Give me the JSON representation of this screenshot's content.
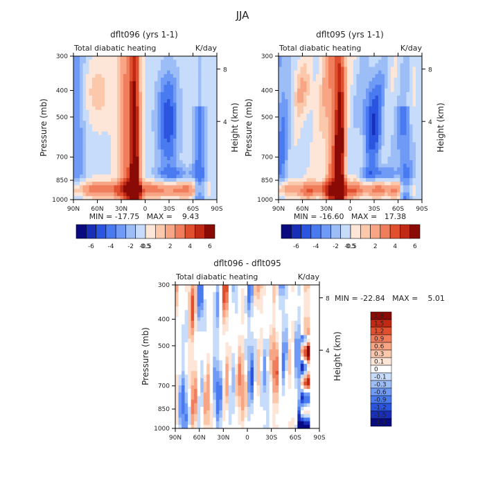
{
  "page_title": "JJA",
  "chart_data": [
    {
      "type": "heatmap",
      "id": "p1",
      "title": "dflt096 (yrs 1-1)",
      "subtitle_left": "Total diabatic heating",
      "subtitle_right": "K/day",
      "ylabel": "Pressure (mb)",
      "y2label": "Height (km)",
      "x_ticks": [
        "90N",
        "60N",
        "30N",
        "0",
        "30S",
        "60S",
        "90S"
      ],
      "y_ticks": [
        "300",
        "400",
        "500",
        "700",
        "850",
        "1000"
      ],
      "y2_ticks": [
        "8",
        "4"
      ],
      "stats": "MIN = -17.75   MAX =    9.43",
      "colorbar_labels": [
        "-6",
        "-4",
        "-2",
        "-0.5",
        "0.5",
        "2",
        "4",
        "6"
      ],
      "colorbar_colors": [
        "#0a0a80",
        "#1a2fb8",
        "#2b55e0",
        "#4a7af0",
        "#6f9af5",
        "#9dbdf7",
        "#c6dcfa",
        "#fde6d8",
        "#fbc8ab",
        "#f7a584",
        "#f07e5c",
        "#e0502f",
        "#c02a14",
        "#8a0a05"
      ]
    },
    {
      "type": "heatmap",
      "id": "p2",
      "title": "dflt095 (yrs 1-1)",
      "subtitle_left": "Total diabatic heating",
      "subtitle_right": "K/day",
      "ylabel": "Pressure (mb)",
      "y2label": "Height (km)",
      "x_ticks": [
        "90N",
        "60N",
        "30N",
        "0",
        "30S",
        "60S",
        "90S"
      ],
      "y_ticks": [
        "300",
        "400",
        "500",
        "700",
        "850",
        "1000"
      ],
      "y2_ticks": [
        "8",
        "4"
      ],
      "stats": "MIN = -16.60   MAX =   17.38",
      "colorbar_labels": [
        "-6",
        "-4",
        "-2",
        "-0.5",
        "0.5",
        "2",
        "4",
        "6"
      ],
      "colorbar_colors": [
        "#0a0a80",
        "#1a2fb8",
        "#2b55e0",
        "#4a7af0",
        "#6f9af5",
        "#9dbdf7",
        "#c6dcfa",
        "#fde6d8",
        "#fbc8ab",
        "#f7a584",
        "#f07e5c",
        "#e0502f",
        "#c02a14",
        "#8a0a05"
      ]
    },
    {
      "type": "heatmap",
      "id": "p3",
      "title": "dflt096 - dflt095",
      "subtitle_left": "Total diabatic heating",
      "subtitle_right": "K/day",
      "ylabel": "Pressure (mb)",
      "y2label": "Height (km)",
      "x_ticks": [
        "90N",
        "60N",
        "30N",
        "0",
        "30S",
        "60S",
        "90S"
      ],
      "y_ticks": [
        "300",
        "400",
        "500",
        "700",
        "850",
        "1000"
      ],
      "y2_ticks": [
        "8",
        "4"
      ],
      "stats": "MIN = -22.84   MAX =    5.01",
      "colorbar_labels": [
        "1.8",
        "1.5",
        "1.2",
        "0.9",
        "0.6",
        "0.3",
        "0.1",
        "0",
        "-0.1",
        "-0.3",
        "-0.6",
        "-0.9",
        "-1.2",
        "-1.5",
        "-1.8"
      ],
      "colorbar_colors": [
        "#8a0a05",
        "#c02a14",
        "#e0502f",
        "#f07e5c",
        "#f7a584",
        "#fbc8ab",
        "#fde6d8",
        "#ffffff",
        "#c6dcfa",
        "#9dbdf7",
        "#6f9af5",
        "#4a7af0",
        "#2b55e0",
        "#1a2fb8",
        "#0a0a80"
      ]
    }
  ]
}
